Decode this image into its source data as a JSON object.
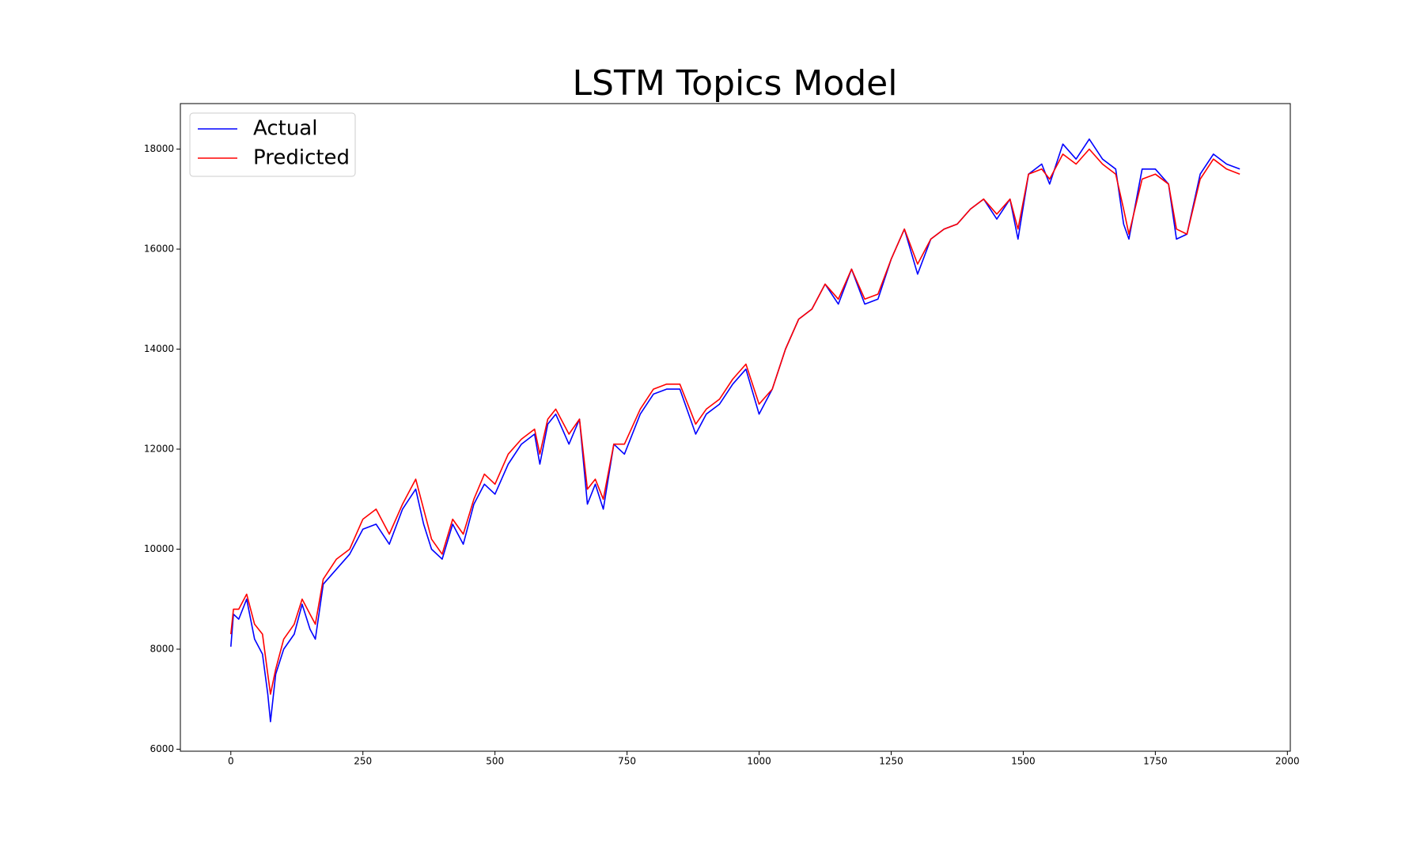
{
  "chart_data": {
    "type": "line",
    "title": "LSTM Topics Model",
    "x": [
      0,
      5,
      15,
      30,
      45,
      60,
      70,
      75,
      85,
      100,
      120,
      135,
      150,
      160,
      175,
      200,
      225,
      250,
      275,
      300,
      325,
      350,
      365,
      380,
      400,
      420,
      440,
      460,
      480,
      500,
      525,
      550,
      575,
      585,
      600,
      615,
      640,
      660,
      675,
      690,
      705,
      725,
      745,
      775,
      800,
      825,
      850,
      880,
      900,
      925,
      950,
      975,
      1000,
      1025,
      1050,
      1075,
      1100,
      1125,
      1150,
      1175,
      1200,
      1225,
      1250,
      1275,
      1300,
      1325,
      1350,
      1375,
      1400,
      1425,
      1450,
      1475,
      1490,
      1510,
      1535,
      1550,
      1575,
      1600,
      1625,
      1650,
      1675,
      1690,
      1700,
      1725,
      1750,
      1775,
      1790,
      1810,
      1835,
      1860,
      1885,
      1910
    ],
    "series": [
      {
        "name": "Actual",
        "color": "#0000ff",
        "values": [
          8050,
          8700,
          8600,
          9000,
          8200,
          7900,
          7100,
          6550,
          7500,
          8000,
          8300,
          8900,
          8400,
          8200,
          9300,
          9600,
          9900,
          10400,
          10500,
          10100,
          10800,
          11200,
          10500,
          10000,
          9800,
          10500,
          10100,
          10900,
          11300,
          11100,
          11700,
          12100,
          12300,
          11700,
          12500,
          12700,
          12100,
          12600,
          10900,
          11300,
          10800,
          12100,
          11900,
          12700,
          13100,
          13200,
          13200,
          12300,
          12700,
          12900,
          13300,
          13600,
          12700,
          13200,
          14000,
          14600,
          14800,
          15300,
          14900,
          15600,
          14900,
          15000,
          15800,
          16400,
          15500,
          16200,
          16400,
          16500,
          16800,
          17000,
          16600,
          17000,
          16200,
          17500,
          17700,
          17300,
          18100,
          17800,
          18200,
          17800,
          17600,
          16500,
          16200,
          17600,
          17600,
          17300,
          16200,
          16300,
          17500,
          17900,
          17700,
          17600
        ]
      },
      {
        "name": "Predicted",
        "color": "#ff0000",
        "values": [
          8300,
          8800,
          8800,
          9100,
          8500,
          8300,
          7500,
          7100,
          7600,
          8200,
          8500,
          9000,
          8700,
          8500,
          9400,
          9800,
          10000,
          10600,
          10800,
          10300,
          10900,
          11400,
          10800,
          10200,
          9900,
          10600,
          10300,
          11000,
          11500,
          11300,
          11900,
          12200,
          12400,
          11900,
          12600,
          12800,
          12300,
          12600,
          11200,
          11400,
          11000,
          12100,
          12100,
          12800,
          13200,
          13300,
          13300,
          12500,
          12800,
          13000,
          13400,
          13700,
          12900,
          13200,
          14000,
          14600,
          14800,
          15300,
          15000,
          15600,
          15000,
          15100,
          15800,
          16400,
          15700,
          16200,
          16400,
          16500,
          16800,
          17000,
          16700,
          17000,
          16400,
          17500,
          17600,
          17400,
          17900,
          17700,
          18000,
          17700,
          17500,
          16800,
          16300,
          17400,
          17500,
          17300,
          16400,
          16300,
          17400,
          17800,
          17600,
          17500
        ]
      }
    ],
    "xlim": [
      -95.5,
      2005.5
    ],
    "ylim": [
      5960,
      18910
    ],
    "xticks": [
      0,
      250,
      500,
      750,
      1000,
      1250,
      1500,
      1750,
      2000
    ],
    "yticks": [
      6000,
      8000,
      10000,
      12000,
      14000,
      16000,
      18000
    ],
    "grid": false,
    "legend": "upper-left"
  }
}
